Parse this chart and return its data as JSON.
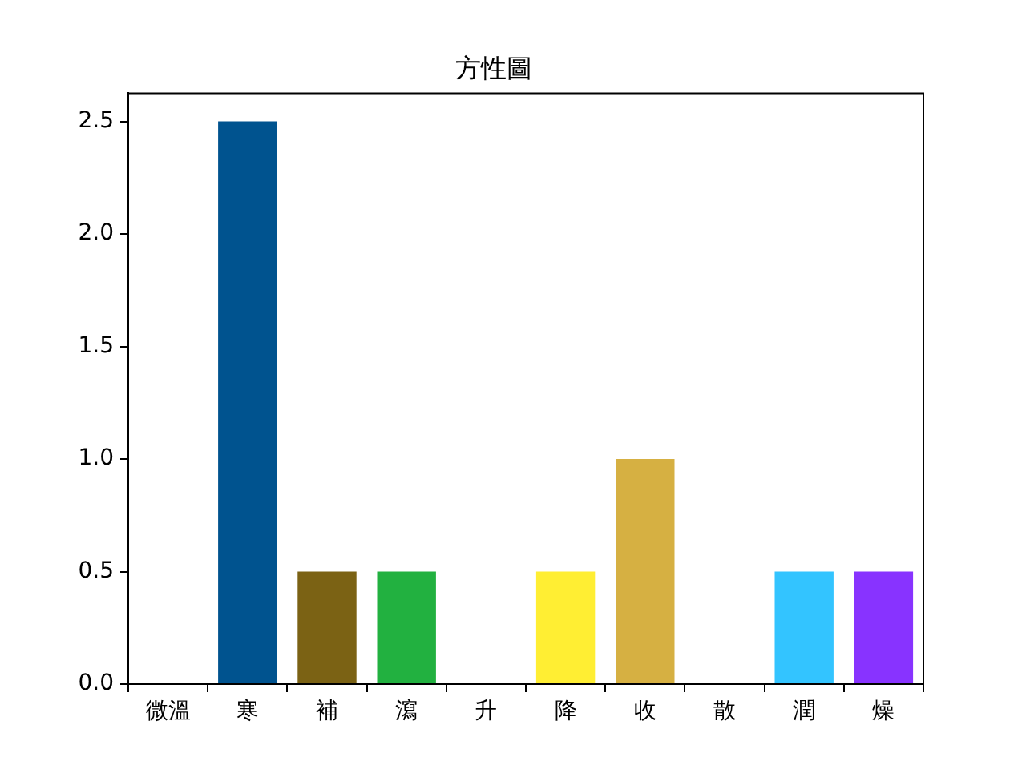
{
  "chart_data": {
    "type": "bar",
    "title": "方性圖",
    "categories": [
      "微溫",
      "寒",
      "補",
      "瀉",
      "升",
      "降",
      "收",
      "散",
      "潤",
      "燥"
    ],
    "values": [
      0,
      2.5,
      0.5,
      0.5,
      0,
      0.5,
      1,
      0,
      0.5,
      0.5
    ],
    "colors": [
      null,
      "#00538f",
      "#7b6214",
      "#22b140",
      null,
      "#ffee33",
      "#d6b042",
      null,
      "#33c4ff",
      "#8833ff"
    ],
    "ylim": [
      0,
      2.625
    ],
    "yticks": [
      {
        "value": 0,
        "label": "0.0"
      },
      0.5,
      {
        "value": 1,
        "label": "1.0"
      },
      1.5,
      {
        "value": 2,
        "label": "2.0"
      },
      2.5
    ]
  }
}
